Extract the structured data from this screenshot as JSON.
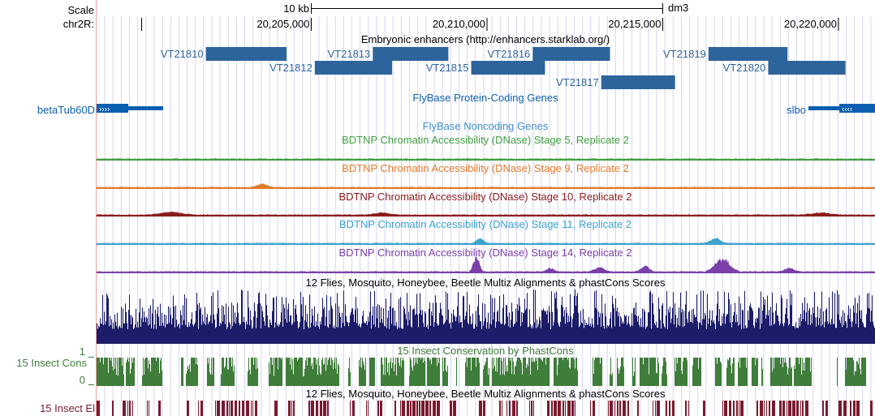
{
  "ruler": {
    "scale_label": "Scale",
    "scale_text": "10 kb",
    "assembly": "dm3",
    "chrom_label": "chr2R:",
    "positions": [
      {
        "bp": 20205000,
        "label": "20,205,000"
      },
      {
        "bp": 20210000,
        "label": "20,210,000"
      },
      {
        "bp": 20215000,
        "label": "20,215,000"
      },
      {
        "bp": 20220000,
        "label": "20,220,000"
      }
    ]
  },
  "tracks": {
    "enhancers": {
      "title": "Embryonic enhancers (http://enhancers.starklab.org/)",
      "color": "#2e649c",
      "items": [
        {
          "name": "VT21810",
          "start": 20202000,
          "end": 20204300
        },
        {
          "name": "VT21812",
          "start": 20205100,
          "end": 20207300
        },
        {
          "name": "VT21813",
          "start": 20206750,
          "end": 20208900
        },
        {
          "name": "VT21815",
          "start": 20209550,
          "end": 20211650
        },
        {
          "name": "VT21816",
          "start": 20211300,
          "end": 20213500
        },
        {
          "name": "VT21817",
          "start": 20213250,
          "end": 20215350
        },
        {
          "name": "VT21819",
          "start": 20216300,
          "end": 20218550
        },
        {
          "name": "VT21820",
          "start": 20218000,
          "end": 20220200
        }
      ]
    },
    "protein_genes": {
      "title": "FlyBase Protein-Coding Genes",
      "color": "#0c5fb0",
      "items": [
        {
          "name": "betaTub60D",
          "strand": "+"
        },
        {
          "name": "slbo",
          "strand": "-"
        }
      ]
    },
    "noncoding_genes": {
      "title": "FlyBase Noncoding Genes",
      "color": "#3f8fd0"
    },
    "dnase": [
      {
        "title": "BDTNP Chromatin Accessibility (DNase) Stage 5, Replicate 2",
        "color": "#3f9f3f",
        "peaks": []
      },
      {
        "title": "BDTNP Chromatin Accessibility (DNase) Stage 9, Replicate 2",
        "color": "#e57a2a",
        "peaks": [
          {
            "bp": 20203600,
            "h": 0.25,
            "w": 400
          }
        ]
      },
      {
        "title": "BDTNP Chromatin Accessibility (DNase) Stage 10, Replicate 2",
        "color": "#8c1c1c",
        "peaks": [
          {
            "bp": 20201000,
            "h": 0.2,
            "w": 900
          },
          {
            "bp": 20207000,
            "h": 0.15,
            "w": 600
          },
          {
            "bp": 20219500,
            "h": 0.15,
            "w": 800
          }
        ]
      },
      {
        "title": "BDTNP Chromatin Accessibility (DNase) Stage 11, Replicate 2",
        "color": "#3ea2cf",
        "peaks": [
          {
            "bp": 20209800,
            "h": 0.35,
            "w": 300
          },
          {
            "bp": 20216500,
            "h": 0.4,
            "w": 400
          }
        ]
      },
      {
        "title": "BDTNP Chromatin Accessibility (DNase) Stage 14, Replicate 2",
        "color": "#7c40aa",
        "peaks": [
          {
            "bp": 20209700,
            "h": 1.0,
            "w": 250
          },
          {
            "bp": 20211800,
            "h": 0.25,
            "w": 300
          },
          {
            "bp": 20213200,
            "h": 0.3,
            "w": 400
          },
          {
            "bp": 20214500,
            "h": 0.4,
            "w": 350
          },
          {
            "bp": 20216700,
            "h": 0.95,
            "w": 600
          },
          {
            "bp": 20218600,
            "h": 0.25,
            "w": 400
          }
        ]
      }
    ],
    "multiz": {
      "title": "12 Flies, Mosquito, Honeybee, Beetle Multiz Alignments & phastCons Scores",
      "color": "#1c1c6a"
    },
    "phastcons": {
      "title": "15 Insect Conservation by PhastCons",
      "side_label": "15 Insect Cons",
      "max_label": "1",
      "min_label": "0",
      "color": "#3f7d3a"
    },
    "elements": {
      "title": "12 Flies, Mosquito, Honeybee, Beetle Multiz Alignments & phastCons Scores",
      "side_label": "15 Insect El",
      "color": "#7a1a2e"
    }
  }
}
